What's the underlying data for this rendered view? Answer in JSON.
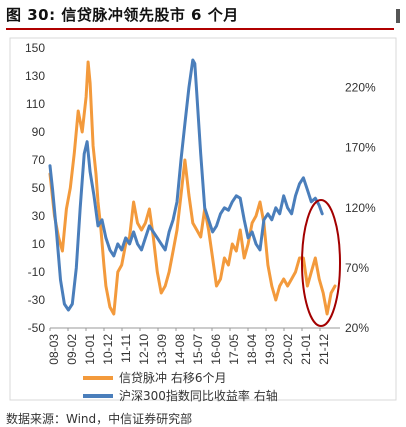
{
  "header": {
    "figure_title": "图 30: 信贷脉冲领先股市 6 个月"
  },
  "footer": {
    "source_text": "数据来源：Wind，中信证券研究部"
  },
  "chart_data": {
    "type": "line",
    "title": "",
    "xlabel": "",
    "ylabel": "",
    "x_ticks": [
      "08-03",
      "09-02",
      "10-01",
      "10-12",
      "11-11",
      "12-10",
      "13-09",
      "14-08",
      "15-07",
      "16-06",
      "17-05",
      "18-04",
      "19-03",
      "20-02",
      "21-01",
      "21-12"
    ],
    "left_axis": {
      "ticks": [
        -50,
        -30,
        -10,
        10,
        30,
        50,
        70,
        90,
        110,
        130,
        150
      ],
      "ylim": [
        -50,
        150
      ]
    },
    "right_axis": {
      "ticks": [
        "20%",
        "70%",
        "120%",
        "170%",
        "220%"
      ],
      "values": [
        20,
        70,
        120,
        170,
        220
      ],
      "ylim": [
        20,
        253
      ]
    },
    "grid": false,
    "legend_position": "bottom",
    "series": [
      {
        "name": "信贷脉冲  右移6个月",
        "axis": "left",
        "color": "#F39A3C",
        "x": [
          2008.17,
          2008.4,
          2008.6,
          2008.8,
          2009.0,
          2009.2,
          2009.4,
          2009.6,
          2009.8,
          2010.0,
          2010.1,
          2010.2,
          2010.35,
          2010.5,
          2010.6,
          2010.75,
          2010.9,
          2011.0,
          2011.2,
          2011.4,
          2011.6,
          2011.8,
          2012.0,
          2012.2,
          2012.4,
          2012.6,
          2012.8,
          2013.0,
          2013.2,
          2013.4,
          2013.6,
          2013.8,
          2014.0,
          2014.2,
          2014.4,
          2014.6,
          2014.8,
          2015.0,
          2015.2,
          2015.4,
          2015.6,
          2015.8,
          2016.0,
          2016.2,
          2016.4,
          2016.6,
          2016.8,
          2017.0,
          2017.2,
          2017.4,
          2017.6,
          2017.8,
          2018.0,
          2018.2,
          2018.4,
          2018.6,
          2018.8,
          2019.0,
          2019.2,
          2019.4,
          2019.6,
          2019.8,
          2020.0,
          2020.2,
          2020.4,
          2020.6,
          2020.8,
          2021.0,
          2021.2,
          2021.4,
          2021.6,
          2021.8,
          2022.0,
          2022.2,
          2022.4,
          2022.6
        ],
        "values": [
          60,
          30,
          15,
          5,
          35,
          50,
          75,
          105,
          90,
          115,
          140,
          125,
          80,
          60,
          40,
          20,
          -5,
          -20,
          -35,
          -40,
          -10,
          -5,
          10,
          15,
          40,
          25,
          20,
          25,
          35,
          15,
          -10,
          -25,
          -20,
          -10,
          5,
          20,
          45,
          70,
          45,
          25,
          20,
          15,
          35,
          20,
          0,
          -20,
          -15,
          0,
          -5,
          10,
          5,
          20,
          0,
          10,
          25,
          30,
          40,
          25,
          -5,
          -20,
          -30,
          -20,
          -15,
          -20,
          -15,
          -10,
          0,
          0,
          -20,
          -10,
          0,
          -15,
          -25,
          -40,
          -25,
          -20
        ]
      },
      {
        "name": "沪深300指数同比收益率  右轴",
        "axis": "right",
        "color": "#4A7EBB",
        "x": [
          2008.17,
          2008.3,
          2008.5,
          2008.7,
          2008.9,
          2009.1,
          2009.3,
          2009.5,
          2009.7,
          2009.9,
          2010.05,
          2010.2,
          2010.4,
          2010.6,
          2010.8,
          2011.0,
          2011.2,
          2011.4,
          2011.6,
          2011.8,
          2012.0,
          2012.2,
          2012.4,
          2012.6,
          2012.8,
          2013.0,
          2013.2,
          2013.4,
          2013.6,
          2013.8,
          2014.0,
          2014.2,
          2014.4,
          2014.6,
          2014.8,
          2015.0,
          2015.2,
          2015.4,
          2015.5,
          2015.6,
          2015.8,
          2016.0,
          2016.2,
          2016.4,
          2016.6,
          2016.8,
          2017.0,
          2017.2,
          2017.4,
          2017.6,
          2017.8,
          2018.0,
          2018.2,
          2018.4,
          2018.6,
          2018.8,
          2019.0,
          2019.2,
          2019.4,
          2019.6,
          2019.8,
          2020.0,
          2020.2,
          2020.4,
          2020.6,
          2020.8,
          2021.0,
          2021.2,
          2021.4,
          2021.6,
          2021.8,
          2021.95
        ],
        "values": [
          155,
          135,
          100,
          60,
          40,
          35,
          40,
          70,
          120,
          165,
          175,
          150,
          130,
          105,
          110,
          95,
          85,
          80,
          90,
          85,
          95,
          90,
          100,
          90,
          85,
          95,
          105,
          100,
          95,
          90,
          85,
          100,
          110,
          125,
          160,
          190,
          220,
          243,
          240,
          215,
          165,
          120,
          110,
          100,
          105,
          115,
          120,
          118,
          125,
          130,
          128,
          110,
          95,
          100,
          90,
          85,
          110,
          115,
          110,
          120,
          115,
          130,
          120,
          115,
          130,
          140,
          145,
          135,
          125,
          128,
          122,
          115
        ]
      }
    ],
    "annotations": [
      "red-ellipse-highlight"
    ]
  }
}
